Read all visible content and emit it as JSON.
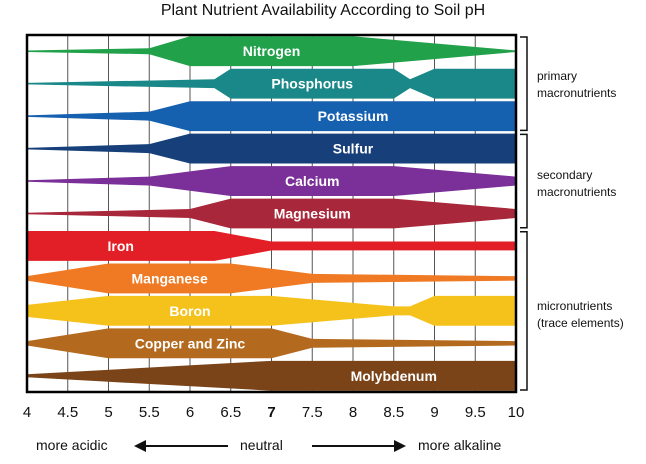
{
  "title": "Plant Nutrient Availability According to Soil pH",
  "x_ticks": [
    {
      "value": 4,
      "label": "4"
    },
    {
      "value": 4.5,
      "label": "4.5"
    },
    {
      "value": 5,
      "label": "5"
    },
    {
      "value": 5.5,
      "label": "5.5"
    },
    {
      "value": 6,
      "label": "6"
    },
    {
      "value": 6.5,
      "label": "6.5"
    },
    {
      "value": 7,
      "label": "7",
      "bold": true
    },
    {
      "value": 7.5,
      "label": "7.5"
    },
    {
      "value": 8,
      "label": "8"
    },
    {
      "value": 8.5,
      "label": "8.5"
    },
    {
      "value": 9,
      "label": "9"
    },
    {
      "value": 9.5,
      "label": "9.5"
    },
    {
      "value": 10,
      "label": "10"
    }
  ],
  "nutrients": [
    {
      "name": "Nitrogen",
      "color": "#21a14a",
      "widths": [
        [
          4,
          0.05
        ],
        [
          5.5,
          0.2
        ],
        [
          6,
          1
        ],
        [
          8,
          1
        ],
        [
          10,
          0.05
        ]
      ]
    },
    {
      "name": "Phosphorus",
      "color": "#1a8888",
      "widths": [
        [
          4,
          0.05
        ],
        [
          6.3,
          0.3
        ],
        [
          6.5,
          1
        ],
        [
          8.5,
          1
        ],
        [
          8.7,
          0.3
        ],
        [
          9,
          1
        ],
        [
          10,
          1
        ]
      ]
    },
    {
      "name": "Potassium",
      "color": "#1660b0",
      "widths": [
        [
          4,
          0.05
        ],
        [
          5.5,
          0.3
        ],
        [
          6,
          1
        ],
        [
          10,
          1
        ]
      ]
    },
    {
      "name": "Sulfur",
      "color": "#173f7a",
      "widths": [
        [
          4,
          0.05
        ],
        [
          5.5,
          0.3
        ],
        [
          6,
          1
        ],
        [
          10,
          1
        ]
      ]
    },
    {
      "name": "Calcium",
      "color": "#7b2f98",
      "widths": [
        [
          4,
          0.05
        ],
        [
          5.5,
          0.3
        ],
        [
          6.5,
          1
        ],
        [
          8.5,
          1
        ],
        [
          10,
          0.3
        ]
      ]
    },
    {
      "name": "Magnesium",
      "color": "#a8273a",
      "widths": [
        [
          4,
          0.05
        ],
        [
          6,
          0.3
        ],
        [
          6.5,
          1
        ],
        [
          8.5,
          1
        ],
        [
          10,
          0.3
        ]
      ]
    },
    {
      "name": "Iron",
      "color": "#e21f26",
      "widths": [
        [
          4,
          1
        ],
        [
          6.3,
          1
        ],
        [
          7,
          0.3
        ],
        [
          10,
          0.3
        ]
      ]
    },
    {
      "name": "Manganese",
      "color": "#ef7a23",
      "widths": [
        [
          4,
          0.15
        ],
        [
          5,
          1
        ],
        [
          6.5,
          1
        ],
        [
          7.5,
          0.3
        ],
        [
          10,
          0.15
        ]
      ]
    },
    {
      "name": "Boron",
      "color": "#f5c21b",
      "widths": [
        [
          4,
          0.4
        ],
        [
          5,
          1
        ],
        [
          7,
          1
        ],
        [
          8.5,
          0.3
        ],
        [
          8.7,
          0.3
        ],
        [
          9,
          1
        ],
        [
          10,
          1
        ]
      ]
    },
    {
      "name": "Copper and Zinc",
      "color": "#b36a1e",
      "widths": [
        [
          4,
          0.15
        ],
        [
          5,
          1
        ],
        [
          7,
          1
        ],
        [
          7.5,
          0.3
        ],
        [
          10,
          0.15
        ]
      ]
    },
    {
      "name": "Molybdenum",
      "color": "#7a4418",
      "widths": [
        [
          4,
          0.1
        ],
        [
          7,
          1
        ],
        [
          10,
          1
        ]
      ]
    }
  ],
  "groups": [
    {
      "lines": [
        "primary",
        "macronutrients"
      ]
    },
    {
      "lines": [
        "secondary",
        "macronutrients"
      ]
    },
    {
      "lines": [
        "micronutrients",
        "(trace elements)"
      ]
    }
  ],
  "footer": {
    "left": "more acidic",
    "middle": "neutral",
    "right": "more alkaline"
  }
}
